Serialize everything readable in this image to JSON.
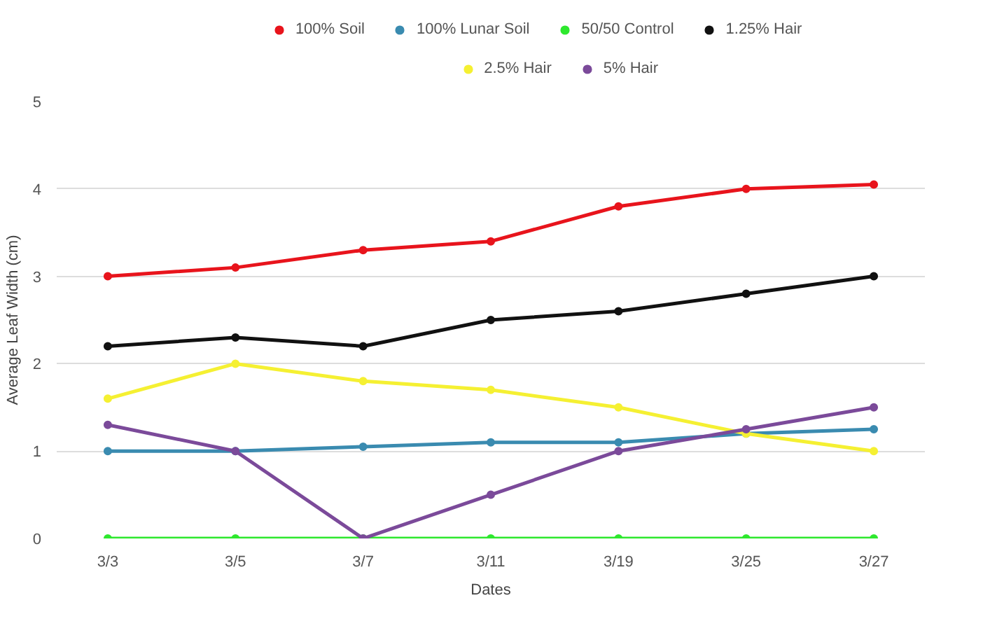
{
  "chart_data": {
    "type": "line",
    "xlabel": "Dates",
    "ylabel": "Average Leaf Width (cm)",
    "categories": [
      "3/3",
      "3/5",
      "3/7",
      "3/11",
      "3/19",
      "3/25",
      "3/27"
    ],
    "series": [
      {
        "name": "100% Soil",
        "color": "#e8141c",
        "values": [
          3.0,
          3.1,
          3.3,
          3.4,
          3.8,
          4.0,
          4.05
        ]
      },
      {
        "name": "100% Lunar Soil",
        "color": "#3a8bb0",
        "values": [
          1.0,
          1.0,
          1.05,
          1.1,
          1.1,
          1.2,
          1.25
        ]
      },
      {
        "name": "50/50 Control",
        "color": "#2ee82e",
        "values": [
          0,
          0,
          0,
          0,
          0,
          0,
          0
        ]
      },
      {
        "name": "1.25% Hair",
        "color": "#111111",
        "values": [
          2.2,
          2.3,
          2.2,
          2.5,
          2.6,
          2.8,
          3.0
        ]
      },
      {
        "name": "2.5% Hair",
        "color": "#f5f032",
        "values": [
          1.6,
          2.0,
          1.8,
          1.7,
          1.5,
          1.2,
          1.0
        ]
      },
      {
        "name": "5% Hair",
        "color": "#7b4a9a",
        "values": [
          1.3,
          1.0,
          0,
          0.5,
          1.0,
          1.25,
          1.5
        ]
      }
    ],
    "ylim": [
      0,
      5
    ],
    "yticks": [
      0,
      1,
      2,
      3,
      4,
      5
    ],
    "grid": "y",
    "legend": "top",
    "marker": "circle",
    "line_style": "solid"
  }
}
